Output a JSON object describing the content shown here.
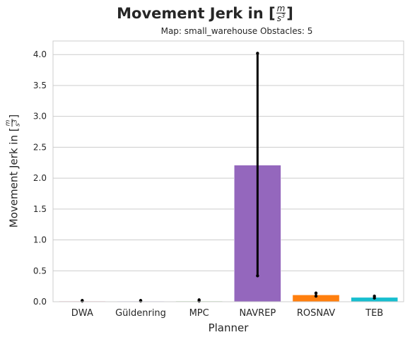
{
  "chart_data": {
    "type": "bar",
    "title_prefix": "Movement Jerk in [",
    "title_suffix": "]",
    "unit_num": "m",
    "unit_den": "s",
    "unit_exp": "3",
    "subtitle": "Map: small_warehouse Obstacles: 5",
    "xlabel": "Planner",
    "ylabel_prefix": "Movement Jerk in [",
    "ylabel_suffix": "]",
    "categories": [
      "DWA",
      "Güldenring",
      "MPC",
      "NAVREP",
      "ROSNAV",
      "TEB"
    ],
    "values": [
      0.01,
      0.01,
      0.01,
      2.21,
      0.11,
      0.07
    ],
    "error_low": [
      0.01,
      0.01,
      0.01,
      0.42,
      0.09,
      0.06
    ],
    "error_high": [
      0.02,
      0.02,
      0.03,
      4.02,
      0.14,
      0.09
    ],
    "colors": [
      "#f77189",
      "#b0a1f5",
      "#50b131",
      "#9467bd",
      "#ff7f0e",
      "#17becf"
    ],
    "ylim": [
      0,
      4.22
    ],
    "yticks": [
      0.0,
      0.5,
      1.0,
      1.5,
      2.0,
      2.5,
      3.0,
      3.5,
      4.0
    ],
    "ytick_labels": [
      "0.0",
      "0.5",
      "1.0",
      "1.5",
      "2.0",
      "2.5",
      "3.0",
      "3.5",
      "4.0"
    ],
    "grid": true
  }
}
